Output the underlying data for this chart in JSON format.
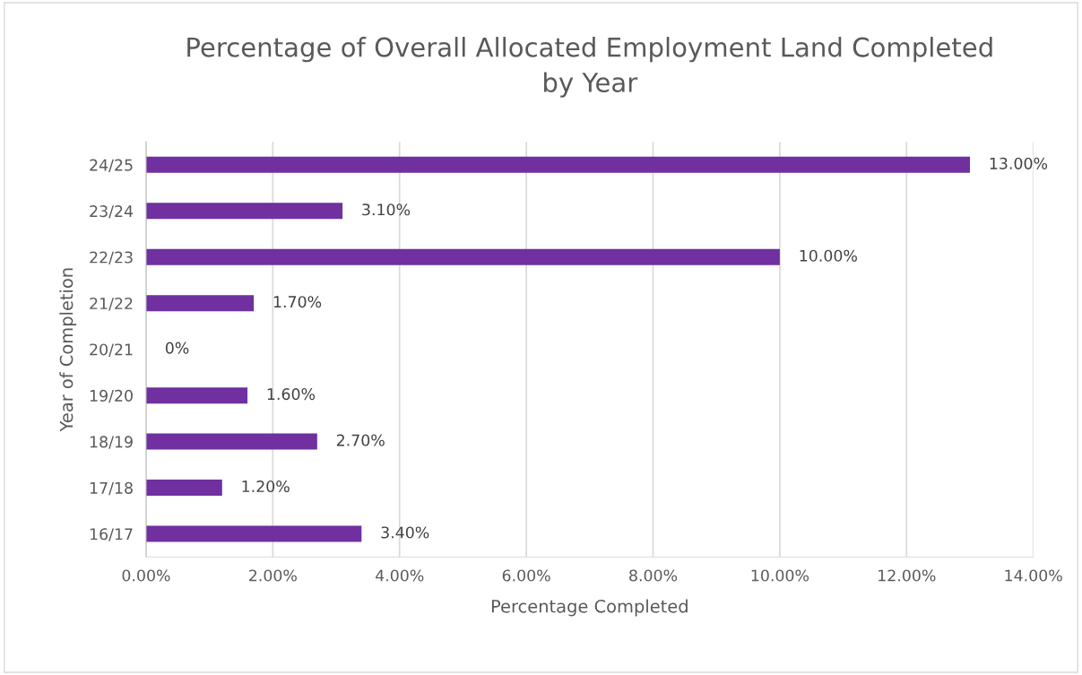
{
  "chart_data": {
    "type": "bar",
    "orientation": "horizontal",
    "title": "Percentage of Overall Allocated Employment Land Completed\nby Year",
    "xlabel": "Percentage Completed",
    "ylabel": "Year of Completion",
    "categories": [
      "24/25",
      "23/24",
      "22/23",
      "21/22",
      "20/21",
      "19/20",
      "18/19",
      "17/18",
      "16/17"
    ],
    "values": [
      13.0,
      3.1,
      10.0,
      1.7,
      0,
      1.6,
      2.7,
      1.2,
      3.4
    ],
    "value_labels": [
      "13.00%",
      "3.10%",
      "10.00%",
      "1.70%",
      "0%",
      "1.60%",
      "2.70%",
      "1.20%",
      "3.40%"
    ],
    "color": "#7030a0",
    "xlim": [
      0,
      14
    ],
    "xticks": [
      {
        "value": 0,
        "label": "0.00%"
      },
      {
        "value": 2,
        "label": "2.00%"
      },
      {
        "value": 4,
        "label": "4.00%"
      },
      {
        "value": 6,
        "label": "6.00%"
      },
      {
        "value": 8,
        "label": "8.00%"
      },
      {
        "value": 10,
        "label": "10.00%"
      },
      {
        "value": 12,
        "label": "12.00%"
      },
      {
        "value": 14,
        "label": "14.00%"
      }
    ],
    "grid": "x"
  }
}
